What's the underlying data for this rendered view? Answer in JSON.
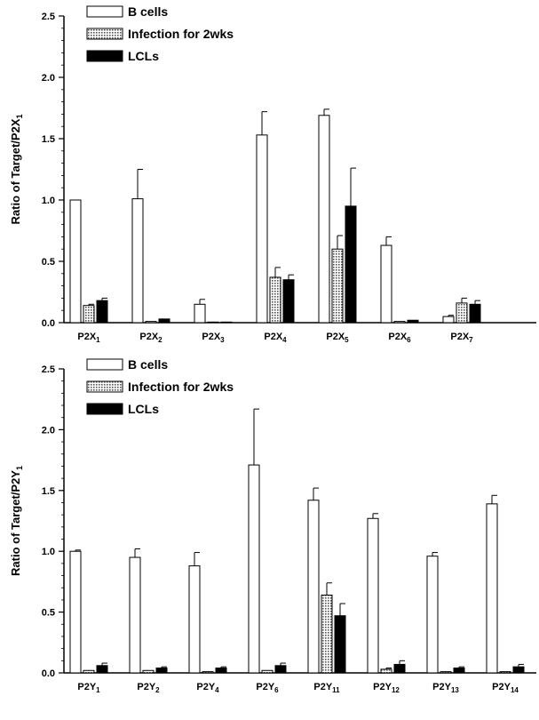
{
  "chart_data": [
    {
      "type": "bar",
      "ylabel": "Ratio of Target/P2X",
      "ylabel_sub": "1",
      "ylim": [
        0,
        2.5
      ],
      "yticks": [
        "0.0",
        "0.5",
        "1.0",
        "1.5",
        "2.0",
        "2.5"
      ],
      "categories": [
        {
          "base": "P2X",
          "sub": "1"
        },
        {
          "base": "P2X",
          "sub": "2"
        },
        {
          "base": "P2X",
          "sub": "3"
        },
        {
          "base": "P2X",
          "sub": "4"
        },
        {
          "base": "P2X",
          "sub": "5"
        },
        {
          "base": "P2X",
          "sub": "6"
        },
        {
          "base": "P2X",
          "sub": "7"
        }
      ],
      "legend_position": "top-left",
      "series": [
        {
          "name": "B cells",
          "fill": "white",
          "values": [
            1.0,
            1.01,
            0.15,
            1.53,
            1.69,
            0.63,
            0.05
          ],
          "errors": [
            0.0,
            0.24,
            0.04,
            0.19,
            0.05,
            0.07,
            0.01
          ]
        },
        {
          "name": "Infection for 2wks",
          "fill": "dotted",
          "values": [
            0.14,
            0.01,
            0.005,
            0.37,
            0.6,
            0.01,
            0.16
          ],
          "errors": [
            0.01,
            0.0,
            0.0,
            0.08,
            0.11,
            0.0,
            0.04
          ]
        },
        {
          "name": "LCLs",
          "fill": "black",
          "values": [
            0.18,
            0.03,
            0.005,
            0.35,
            0.95,
            0.02,
            0.15
          ],
          "errors": [
            0.02,
            0.0,
            0.0,
            0.04,
            0.31,
            0.0,
            0.03
          ]
        }
      ]
    },
    {
      "type": "bar",
      "ylabel": "Ratio of Target/P2Y",
      "ylabel_sub": "1",
      "ylim": [
        0,
        2.5
      ],
      "yticks": [
        "0.0",
        "0.5",
        "1.0",
        "1.5",
        "2.0",
        "2.5"
      ],
      "categories": [
        {
          "base": "P2Y",
          "sub": "1"
        },
        {
          "base": "P2Y",
          "sub": "2"
        },
        {
          "base": "P2Y",
          "sub": "4"
        },
        {
          "base": "P2Y",
          "sub": "6"
        },
        {
          "base": "P2Y",
          "sub": "11"
        },
        {
          "base": "P2Y",
          "sub": "12"
        },
        {
          "base": "P2Y",
          "sub": "13"
        },
        {
          "base": "P2Y",
          "sub": "14"
        }
      ],
      "legend_position": "top-left",
      "series": [
        {
          "name": "B cells",
          "fill": "white",
          "values": [
            1.0,
            0.95,
            0.88,
            1.71,
            1.42,
            1.27,
            0.96,
            1.39
          ],
          "errors": [
            0.01,
            0.07,
            0.11,
            0.46,
            0.1,
            0.04,
            0.03,
            0.07
          ]
        },
        {
          "name": "Infection for 2wks",
          "fill": "dotted",
          "values": [
            0.02,
            0.02,
            0.01,
            0.02,
            0.64,
            0.03,
            0.01,
            0.01
          ],
          "errors": [
            0.0,
            0.0,
            0.0,
            0.0,
            0.1,
            0.01,
            0.0,
            0.0
          ]
        },
        {
          "name": "LCLs",
          "fill": "black",
          "values": [
            0.06,
            0.04,
            0.04,
            0.06,
            0.47,
            0.07,
            0.04,
            0.05
          ],
          "errors": [
            0.02,
            0.01,
            0.01,
            0.02,
            0.1,
            0.03,
            0.01,
            0.02
          ]
        }
      ]
    }
  ]
}
